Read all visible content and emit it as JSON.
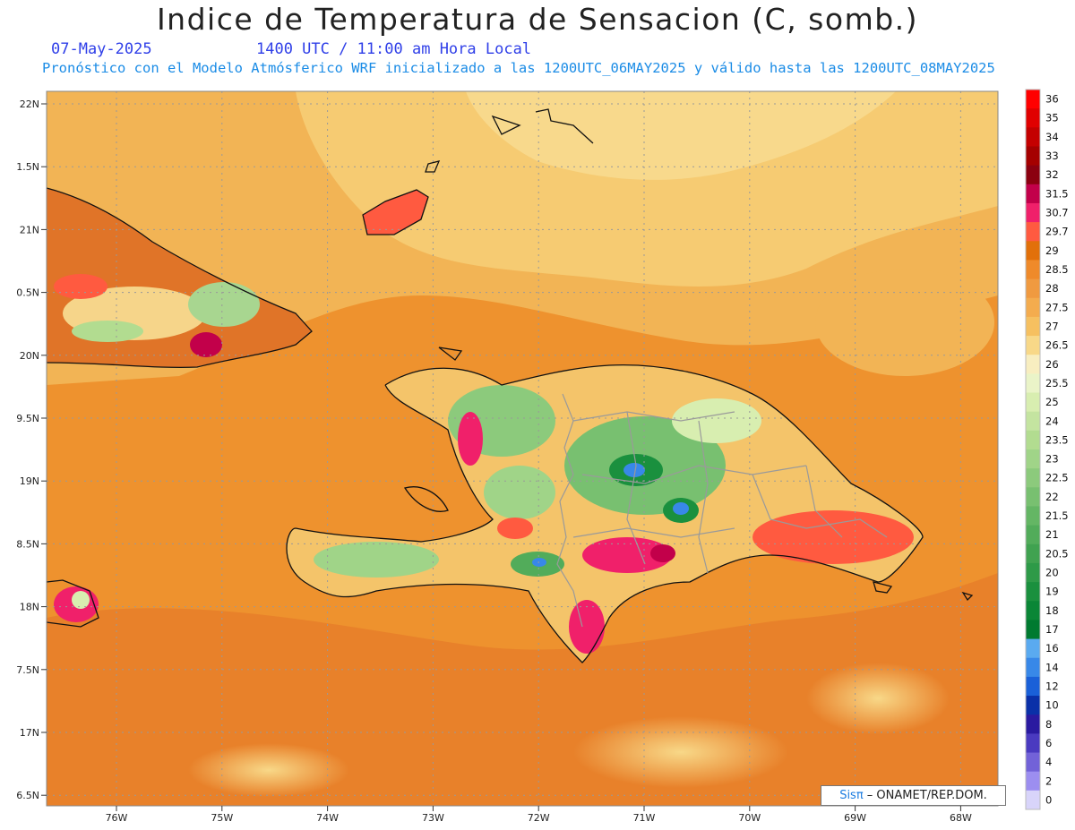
{
  "header": {
    "title": "Indice de Temperatura de Sensacion (C, somb.)",
    "date": "07-May-2025",
    "time": "1400 UTC / 11:00 am Hora Local",
    "subtitle": "Pronóstico con el Modelo Atmósferico WRF inicializado a las 1200UTC_06MAY2025 y válido hasta las  1200UTC_08MAY2025"
  },
  "axes": {
    "lat_labels": [
      "22N",
      "1.5N",
      "21N",
      "0.5N",
      "20N",
      "9.5N",
      "19N",
      "8.5N",
      "18N",
      "7.5N",
      "17N",
      "6.5N"
    ],
    "lon_labels": [
      "76W",
      "75W",
      "74W",
      "73W",
      "72W",
      "71W",
      "70W",
      "69W",
      "68W"
    ]
  },
  "colorbar": {
    "entries": [
      {
        "label": "36",
        "color": "#ff0000"
      },
      {
        "label": "35",
        "color": "#e00000"
      },
      {
        "label": "34",
        "color": "#c40000"
      },
      {
        "label": "33",
        "color": "#a50000"
      },
      {
        "label": "32",
        "color": "#8b0010"
      },
      {
        "label": "31.5",
        "color": "#c2004a"
      },
      {
        "label": "30.7",
        "color": "#f0206a"
      },
      {
        "label": "29.7",
        "color": "#ff5a40"
      },
      {
        "label": "29",
        "color": "#e2700a"
      },
      {
        "label": "28.5",
        "color": "#ef8a2a"
      },
      {
        "label": "28",
        "color": "#f09a40"
      },
      {
        "label": "27.5",
        "color": "#f4ac4e"
      },
      {
        "label": "27",
        "color": "#f6c060"
      },
      {
        "label": "26.5",
        "color": "#f8d888"
      },
      {
        "label": "26",
        "color": "#f8eec0"
      },
      {
        "label": "25.5",
        "color": "#eaf4c8"
      },
      {
        "label": "25",
        "color": "#d8eeb0"
      },
      {
        "label": "24",
        "color": "#c4e4a0"
      },
      {
        "label": "23.5",
        "color": "#b2dc90"
      },
      {
        "label": "23",
        "color": "#a0d488"
      },
      {
        "label": "22.5",
        "color": "#8cca7c"
      },
      {
        "label": "22",
        "color": "#78c070"
      },
      {
        "label": "21.5",
        "color": "#64b664"
      },
      {
        "label": "21",
        "color": "#52ac5a"
      },
      {
        "label": "20.5",
        "color": "#40a250"
      },
      {
        "label": "20",
        "color": "#2e9a48"
      },
      {
        "label": "19",
        "color": "#1a903e"
      },
      {
        "label": "18",
        "color": "#0a8636"
      },
      {
        "label": "17",
        "color": "#007a30"
      },
      {
        "label": "16",
        "color": "#5aaaf0"
      },
      {
        "label": "14",
        "color": "#3888e8"
      },
      {
        "label": "12",
        "color": "#1a60d8"
      },
      {
        "label": "10",
        "color": "#0a30a8"
      },
      {
        "label": "8",
        "color": "#2a1aa0"
      },
      {
        "label": "6",
        "color": "#4a3ac0"
      },
      {
        "label": "4",
        "color": "#7262d8"
      },
      {
        "label": "2",
        "color": "#9c8ef0"
      },
      {
        "label": "0",
        "color": "#d8d4fa"
      }
    ]
  },
  "credit": {
    "brand": "Sisπ",
    "org": " – ONAMET/REP.DOM."
  }
}
